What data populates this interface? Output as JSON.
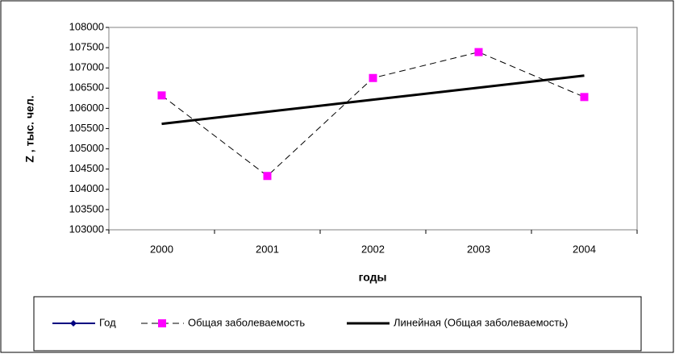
{
  "chart_data": {
    "type": "line",
    "x_label": "годы",
    "y_label": "Z , тыс. чел.",
    "categories": [
      "2000",
      "2001",
      "2002",
      "2003",
      "2004"
    ],
    "series": [
      {
        "name": "Год",
        "color": "#000080",
        "dash": "solid",
        "marker": "diamond",
        "width": 2,
        "values": [
          null,
          null,
          null,
          null,
          null
        ]
      },
      {
        "name": "Общая заболеваемость",
        "color": "#000000",
        "marker_color": "#ff00ff",
        "dash": "dashed",
        "marker": "square",
        "width": 1,
        "values": [
          106320,
          104330,
          106750,
          107390,
          106280
        ]
      },
      {
        "name": "Линейная (Общая заболеваемость)",
        "color": "#000000",
        "dash": "solid",
        "marker": "none",
        "width": 3,
        "values": [
          105618,
          105916,
          106214,
          106512,
          106810
        ]
      }
    ],
    "ylim": [
      103000,
      108000
    ],
    "yticks": [
      103000,
      103500,
      104000,
      104500,
      105000,
      105500,
      106000,
      106500,
      107000,
      107500,
      108000
    ],
    "grid": false,
    "legend": "bottom"
  }
}
